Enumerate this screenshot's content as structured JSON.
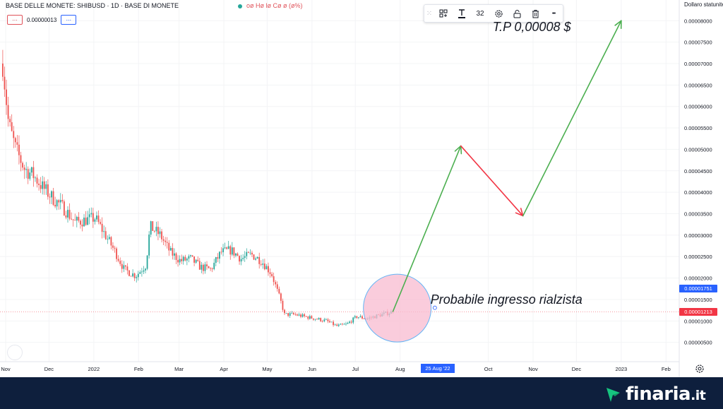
{
  "header": {
    "title": "BASE DELLE MONETE: SHIBUSD · 1D · BASE DI MONETE",
    "ohlc": "oø Hø lø Cø ø (ø%)",
    "indicator_value": "0.00000013",
    "chip_red": "...",
    "chip_blue": "..."
  },
  "toolbar": {
    "grip": "⁙",
    "font_size": "32",
    "more": "•••"
  },
  "colors": {
    "up": "#26a69a",
    "down": "#ef5350",
    "arrow_up": "#4caf50",
    "arrow_down": "#f23645",
    "circle_fill": "#f8bbd0",
    "circle_stroke": "#64b5f6",
    "tag_blue": "#2962ff",
    "tag_red": "#f23645",
    "footer": "#0e1f3d"
  },
  "chart_data": {
    "type": "line",
    "currency_label": "Dollaro statunitense",
    "y_ticks": [
      "0.00000500",
      "0.00001000",
      "0.00001500",
      "0.00002000",
      "0.00002500",
      "0.00003000",
      "0.00003500",
      "0.00004000",
      "0.00004500",
      "0.00005000",
      "0.00005500",
      "0.00006000",
      "0.00006500",
      "0.00007000",
      "0.00007500",
      "0.00008000"
    ],
    "y_tick_values": [
      5e-06,
      1e-05,
      1.5e-05,
      2e-05,
      2.5e-05,
      3e-05,
      3.5e-05,
      4e-05,
      4.5e-05,
      5e-05,
      5.5e-05,
      6e-05,
      6.5e-05,
      7e-05,
      7.5e-05,
      8e-05
    ],
    "ylim": [
      5e-07,
      8.35e-05
    ],
    "x_ticks": [
      "Nov",
      "Dec",
      "2022",
      "Feb",
      "Mar",
      "Apr",
      "May",
      "Jun",
      "Jul",
      "Aug",
      "Oct",
      "Nov",
      "Dec",
      "2023",
      "Feb"
    ],
    "x_tick_dates": [
      "2021-11-01",
      "2021-12-01",
      "2022-01-01",
      "2022-02-01",
      "2022-03-01",
      "2022-04-01",
      "2022-05-01",
      "2022-06-01",
      "2022-07-01",
      "2022-08-01",
      "2022-10-01",
      "2022-11-01",
      "2022-12-01",
      "2023-01-01",
      "2023-02-01"
    ],
    "x_start": "2021-11-01",
    "date_label": "25 Aug '22",
    "date_label_date": "2022-08-25",
    "price_tags": [
      {
        "label": "0.00001751",
        "value": 1.751e-05,
        "color": "#2962ff"
      },
      {
        "label": "0.00001213",
        "value": 1.213e-05,
        "color": "#f23645"
      }
    ],
    "last_price": 1.213e-05,
    "price_path": [
      {
        "date": "2021-10-30",
        "value": 7e-05
      },
      {
        "date": "2021-11-03",
        "value": 5.6e-05
      },
      {
        "date": "2021-11-08",
        "value": 5e-05
      },
      {
        "date": "2021-11-14",
        "value": 4.55e-05
      },
      {
        "date": "2021-11-20",
        "value": 4.4e-05
      },
      {
        "date": "2021-11-27",
        "value": 4.1e-05
      },
      {
        "date": "2021-12-04",
        "value": 3.85e-05
      },
      {
        "date": "2021-12-12",
        "value": 3.6e-05
      },
      {
        "date": "2021-12-19",
        "value": 3.3e-05
      },
      {
        "date": "2021-12-26",
        "value": 3.35e-05
      },
      {
        "date": "2022-01-02",
        "value": 3.4e-05
      },
      {
        "date": "2022-01-09",
        "value": 3e-05
      },
      {
        "date": "2022-01-16",
        "value": 2.6e-05
      },
      {
        "date": "2022-01-22",
        "value": 2.2e-05
      },
      {
        "date": "2022-01-30",
        "value": 2.05e-05
      },
      {
        "date": "2022-02-06",
        "value": 2.3e-05
      },
      {
        "date": "2022-02-09",
        "value": 3.2e-05
      },
      {
        "date": "2022-02-16",
        "value": 3e-05
      },
      {
        "date": "2022-02-23",
        "value": 2.6e-05
      },
      {
        "date": "2022-03-02",
        "value": 2.4e-05
      },
      {
        "date": "2022-03-09",
        "value": 2.45e-05
      },
      {
        "date": "2022-03-16",
        "value": 2.25e-05
      },
      {
        "date": "2022-03-23",
        "value": 2.2e-05
      },
      {
        "date": "2022-03-30",
        "value": 2.6e-05
      },
      {
        "date": "2022-04-06",
        "value": 2.65e-05
      },
      {
        "date": "2022-04-13",
        "value": 2.45e-05
      },
      {
        "date": "2022-04-20",
        "value": 2.55e-05
      },
      {
        "date": "2022-04-27",
        "value": 2.4e-05
      },
      {
        "date": "2022-05-04",
        "value": 2.1e-05
      },
      {
        "date": "2022-05-10",
        "value": 1.5e-05
      },
      {
        "date": "2022-05-13",
        "value": 1.15e-05
      },
      {
        "date": "2022-05-20",
        "value": 1.15e-05
      },
      {
        "date": "2022-05-27",
        "value": 1.1e-05
      },
      {
        "date": "2022-06-04",
        "value": 1.05e-05
      },
      {
        "date": "2022-06-11",
        "value": 1e-05
      },
      {
        "date": "2022-06-18",
        "value": 8.8e-06
      },
      {
        "date": "2022-06-25",
        "value": 9.2e-06
      },
      {
        "date": "2022-07-02",
        "value": 1.1e-05
      },
      {
        "date": "2022-07-09",
        "value": 1.05e-05
      },
      {
        "date": "2022-07-16",
        "value": 1.12e-05
      },
      {
        "date": "2022-07-23",
        "value": 1.18e-05
      },
      {
        "date": "2022-07-27",
        "value": 1.21e-05
      }
    ],
    "projection_up": [
      {
        "date": "2022-07-27",
        "value": 1.22e-05
      },
      {
        "date": "2022-09-12",
        "value": 5.08e-05
      }
    ],
    "projection_down": [
      {
        "date": "2022-09-12",
        "value": 5.08e-05
      },
      {
        "date": "2022-10-25",
        "value": 3.45e-05
      }
    ],
    "projection_up2": [
      {
        "date": "2022-10-25",
        "value": 3.45e-05
      },
      {
        "date": "2023-01-01",
        "value": 8e-05
      }
    ],
    "highlight_circle": {
      "date": "2022-07-30",
      "value": 1.3e-05
    },
    "annotations": [
      {
        "text": "T.P 0,00008 $",
        "date": "2022-10-04",
        "value": 7.83e-05
      },
      {
        "text": "Probabile ingresso rialzista",
        "date": "2022-08-22",
        "value": 1.47e-05
      }
    ]
  },
  "footer": {
    "brand": "finaria",
    "tld": ".it",
    "logo_icon": "arrow-flag-icon"
  }
}
